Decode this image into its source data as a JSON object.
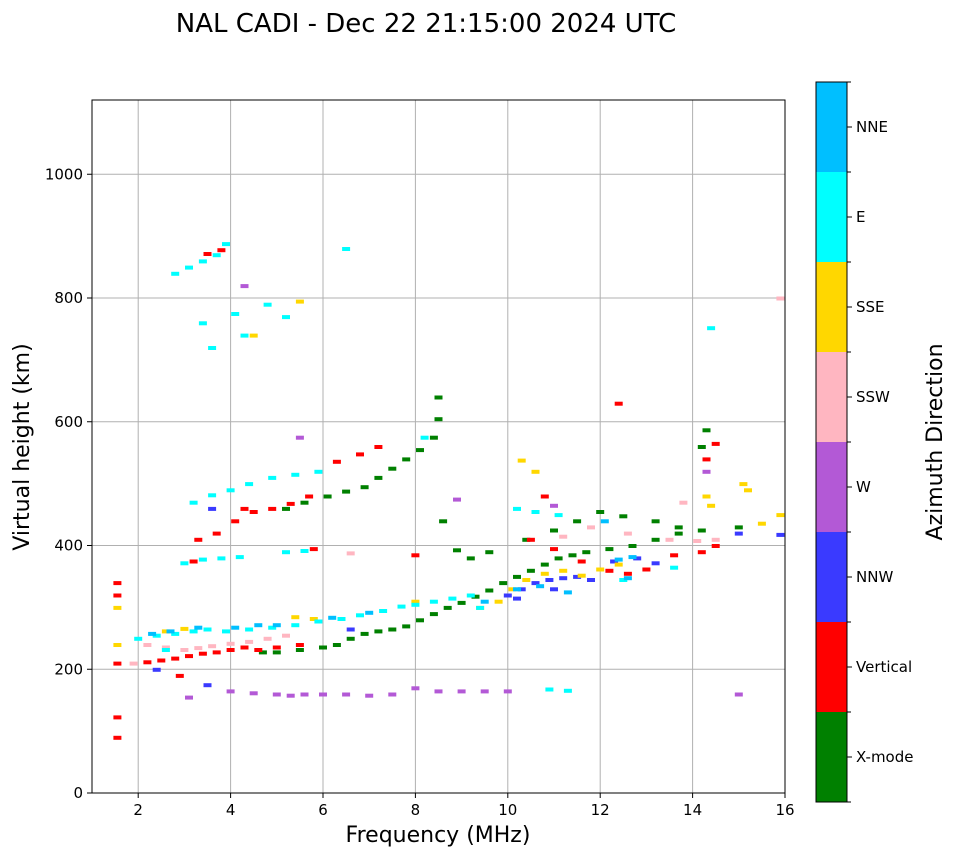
{
  "chart_data": {
    "type": "scatter",
    "title": "NAL CADI - Dec 22 21:15:00 2024 UTC",
    "xlabel": "Frequency (MHz)",
    "ylabel": "Virtual height (km)",
    "xlim": [
      1,
      16
    ],
    "ylim": [
      0,
      1120
    ],
    "xticks": [
      2,
      4,
      6,
      8,
      10,
      12,
      14,
      16
    ],
    "yticks": [
      0,
      200,
      400,
      600,
      800,
      1000
    ],
    "grid": true,
    "colorbar": {
      "label": "Azimuth Direction",
      "categories": [
        "X-mode",
        "Vertical",
        "NNW",
        "W",
        "SSW",
        "SSE",
        "E",
        "NNE"
      ],
      "colors": [
        "#008000",
        "#ff0000",
        "#3a3aff",
        "#b359d6",
        "#ffb6c1",
        "#ffd700",
        "#00ffff",
        "#00bfff"
      ]
    },
    "series": [
      {
        "name": "X-mode",
        "points": [
          [
            6.3,
            240
          ],
          [
            6.6,
            250
          ],
          [
            6.9,
            258
          ],
          [
            7.2,
            262
          ],
          [
            7.5,
            265
          ],
          [
            7.8,
            270
          ],
          [
            8.1,
            280
          ],
          [
            8.4,
            290
          ],
          [
            8.7,
            300
          ],
          [
            9.0,
            308
          ],
          [
            9.3,
            318
          ],
          [
            9.6,
            328
          ],
          [
            9.9,
            340
          ],
          [
            10.2,
            350
          ],
          [
            10.5,
            360
          ],
          [
            10.8,
            370
          ],
          [
            11.1,
            380
          ],
          [
            11.4,
            385
          ],
          [
            11.7,
            390
          ],
          [
            12.2,
            395
          ],
          [
            12.7,
            400
          ],
          [
            13.2,
            410
          ],
          [
            13.7,
            420
          ],
          [
            14.2,
            425
          ],
          [
            15.0,
            430
          ],
          [
            5.0,
            228
          ],
          [
            5.5,
            232
          ],
          [
            6.0,
            236
          ],
          [
            4.7,
            228
          ],
          [
            5.2,
            460
          ],
          [
            5.6,
            470
          ],
          [
            6.1,
            480
          ],
          [
            6.5,
            488
          ],
          [
            6.9,
            495
          ],
          [
            7.2,
            510
          ],
          [
            7.5,
            525
          ],
          [
            7.8,
            540
          ],
          [
            8.1,
            555
          ],
          [
            8.4,
            575
          ],
          [
            8.5,
            640
          ],
          [
            8.5,
            605
          ],
          [
            8.6,
            440
          ],
          [
            8.9,
            393
          ],
          [
            9.2,
            380
          ],
          [
            9.6,
            390
          ],
          [
            10.4,
            410
          ],
          [
            11.0,
            425
          ],
          [
            11.5,
            440
          ],
          [
            12.0,
            455
          ],
          [
            12.5,
            448
          ],
          [
            13.2,
            440
          ],
          [
            13.7,
            430
          ],
          [
            14.3,
            587
          ],
          [
            14.2,
            560
          ]
        ]
      },
      {
        "name": "Vertical",
        "points": [
          [
            1.55,
            340
          ],
          [
            1.55,
            320
          ],
          [
            1.55,
            210
          ],
          [
            1.55,
            123
          ],
          [
            1.55,
            90
          ],
          [
            2.2,
            212
          ],
          [
            2.5,
            215
          ],
          [
            2.8,
            218
          ],
          [
            3.1,
            222
          ],
          [
            3.4,
            226
          ],
          [
            3.7,
            228
          ],
          [
            4.0,
            232
          ],
          [
            4.3,
            236
          ],
          [
            4.6,
            232
          ],
          [
            5.0,
            236
          ],
          [
            5.5,
            240
          ],
          [
            3.3,
            410
          ],
          [
            3.7,
            420
          ],
          [
            4.1,
            440
          ],
          [
            4.5,
            455
          ],
          [
            4.9,
            460
          ],
          [
            5.3,
            468
          ],
          [
            5.7,
            480
          ],
          [
            6.3,
            536
          ],
          [
            6.8,
            548
          ],
          [
            7.2,
            560
          ],
          [
            3.5,
            872
          ],
          [
            3.8,
            878
          ],
          [
            4.3,
            460
          ],
          [
            3.2,
            375
          ],
          [
            10.5,
            410
          ],
          [
            11.0,
            395
          ],
          [
            11.6,
            375
          ],
          [
            12.2,
            360
          ],
          [
            12.6,
            355
          ],
          [
            13.0,
            362
          ],
          [
            13.6,
            385
          ],
          [
            14.2,
            390
          ],
          [
            14.5,
            400
          ],
          [
            12.4,
            630
          ],
          [
            14.5,
            565
          ],
          [
            14.3,
            540
          ],
          [
            8.0,
            385
          ],
          [
            10.8,
            480
          ],
          [
            2.9,
            190
          ],
          [
            5.8,
            395
          ]
        ]
      },
      {
        "name": "NNW",
        "points": [
          [
            10.0,
            320
          ],
          [
            10.3,
            330
          ],
          [
            10.6,
            340
          ],
          [
            10.9,
            345
          ],
          [
            11.2,
            348
          ],
          [
            11.5,
            350
          ],
          [
            11.8,
            345
          ],
          [
            12.3,
            375
          ],
          [
            12.8,
            380
          ],
          [
            13.2,
            372
          ],
          [
            10.2,
            315
          ],
          [
            11.0,
            330
          ],
          [
            15.0,
            420
          ],
          [
            15.9,
            418
          ],
          [
            6.6,
            265
          ],
          [
            3.6,
            460
          ],
          [
            3.5,
            175
          ],
          [
            2.4,
            200
          ]
        ]
      },
      {
        "name": "W",
        "points": [
          [
            4.0,
            165
          ],
          [
            4.5,
            162
          ],
          [
            5.0,
            160
          ],
          [
            5.3,
            158
          ],
          [
            5.6,
            160
          ],
          [
            6.0,
            160
          ],
          [
            6.5,
            160
          ],
          [
            7.0,
            158
          ],
          [
            7.5,
            160
          ],
          [
            8.0,
            170
          ],
          [
            8.5,
            165
          ],
          [
            9.0,
            165
          ],
          [
            9.5,
            165
          ],
          [
            10.0,
            165
          ],
          [
            15.0,
            160
          ],
          [
            4.3,
            820
          ],
          [
            5.5,
            575
          ],
          [
            8.9,
            475
          ],
          [
            14.3,
            520
          ],
          [
            11.0,
            465
          ],
          [
            3.1,
            155
          ]
        ]
      },
      {
        "name": "SSW",
        "points": [
          [
            1.9,
            210
          ],
          [
            2.2,
            240
          ],
          [
            2.6,
            236
          ],
          [
            3.0,
            232
          ],
          [
            3.3,
            235
          ],
          [
            3.6,
            238
          ],
          [
            4.0,
            242
          ],
          [
            4.4,
            245
          ],
          [
            4.8,
            250
          ],
          [
            5.2,
            255
          ],
          [
            6.6,
            388
          ],
          [
            11.2,
            415
          ],
          [
            11.8,
            430
          ],
          [
            12.6,
            420
          ],
          [
            13.5,
            410
          ],
          [
            14.1,
            408
          ],
          [
            14.5,
            410
          ],
          [
            15.9,
            800
          ],
          [
            13.8,
            470
          ]
        ]
      },
      {
        "name": "SSE",
        "points": [
          [
            1.55,
            300
          ],
          [
            1.55,
            240
          ],
          [
            2.6,
            262
          ],
          [
            3.0,
            266
          ],
          [
            5.4,
            285
          ],
          [
            5.8,
            282
          ],
          [
            8.0,
            310
          ],
          [
            9.4,
            300
          ],
          [
            9.8,
            310
          ],
          [
            10.1,
            330
          ],
          [
            10.4,
            345
          ],
          [
            10.8,
            355
          ],
          [
            11.2,
            360
          ],
          [
            11.6,
            352
          ],
          [
            12.0,
            362
          ],
          [
            12.4,
            370
          ],
          [
            14.3,
            480
          ],
          [
            14.4,
            465
          ],
          [
            15.1,
            500
          ],
          [
            15.2,
            490
          ],
          [
            15.5,
            436
          ],
          [
            15.9,
            450
          ],
          [
            10.3,
            538
          ],
          [
            10.6,
            520
          ],
          [
            5.5,
            795
          ],
          [
            4.5,
            740
          ]
        ]
      },
      {
        "name": "E",
        "points": [
          [
            2.0,
            250
          ],
          [
            2.4,
            255
          ],
          [
            2.8,
            258
          ],
          [
            3.2,
            262
          ],
          [
            3.5,
            265
          ],
          [
            3.9,
            262
          ],
          [
            4.4,
            265
          ],
          [
            4.9,
            268
          ],
          [
            5.4,
            272
          ],
          [
            5.9,
            278
          ],
          [
            6.4,
            282
          ],
          [
            6.8,
            288
          ],
          [
            7.3,
            295
          ],
          [
            7.7,
            302
          ],
          [
            8.0,
            305
          ],
          [
            8.4,
            310
          ],
          [
            8.8,
            315
          ],
          [
            9.2,
            320
          ],
          [
            3.0,
            372
          ],
          [
            3.4,
            378
          ],
          [
            3.8,
            380
          ],
          [
            4.2,
            382
          ],
          [
            5.2,
            390
          ],
          [
            5.6,
            392
          ],
          [
            3.2,
            470
          ],
          [
            3.6,
            482
          ],
          [
            4.0,
            490
          ],
          [
            4.4,
            500
          ],
          [
            4.9,
            510
          ],
          [
            5.4,
            515
          ],
          [
            5.9,
            520
          ],
          [
            2.8,
            840
          ],
          [
            3.1,
            850
          ],
          [
            3.4,
            860
          ],
          [
            3.7,
            870
          ],
          [
            3.9,
            888
          ],
          [
            3.4,
            760
          ],
          [
            3.6,
            720
          ],
          [
            4.1,
            775
          ],
          [
            4.3,
            740
          ],
          [
            4.8,
            790
          ],
          [
            5.2,
            770
          ],
          [
            6.5,
            880
          ],
          [
            8.2,
            575
          ],
          [
            10.2,
            460
          ],
          [
            10.6,
            455
          ],
          [
            11.1,
            450
          ],
          [
            14.4,
            752
          ],
          [
            12.5,
            345
          ],
          [
            13.6,
            365
          ],
          [
            10.9,
            168
          ],
          [
            11.3,
            166
          ],
          [
            9.4,
            300
          ],
          [
            2.6,
            232
          ]
        ]
      },
      {
        "name": "NNE",
        "points": [
          [
            2.3,
            258
          ],
          [
            2.7,
            262
          ],
          [
            3.3,
            268
          ],
          [
            4.1,
            268
          ],
          [
            4.6,
            272
          ],
          [
            5.0,
            272
          ],
          [
            6.2,
            284
          ],
          [
            7.0,
            292
          ],
          [
            10.7,
            335
          ],
          [
            11.3,
            325
          ],
          [
            12.4,
            378
          ],
          [
            12.7,
            382
          ],
          [
            12.6,
            348
          ],
          [
            9.5,
            310
          ],
          [
            10.2,
            330
          ],
          [
            12.1,
            440
          ]
        ]
      }
    ]
  }
}
